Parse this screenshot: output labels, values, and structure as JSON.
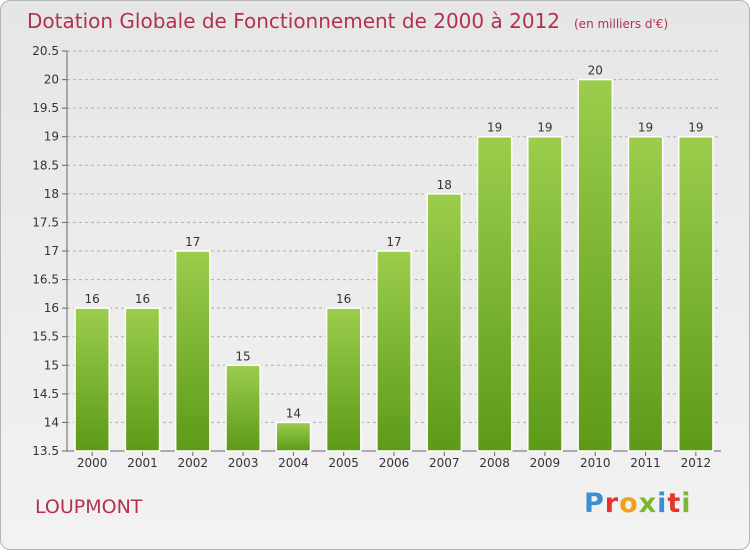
{
  "title": "Dotation Globale de Fonctionnement de 2000 à 2012",
  "unit": "(en milliers d'€)",
  "commune": "LOUPMONT",
  "brand": "Proxiti",
  "colors": {
    "title": "#b2324e",
    "bar_top": "#9ccd4d",
    "bar_bottom": "#5c9a18",
    "grid": "#b0b0b0",
    "logo": [
      "#3b8fd1",
      "#e4352c",
      "#f0a01c",
      "#7fb631",
      "#3b8fd1",
      "#e4352c",
      "#7fb631"
    ]
  },
  "chart_data": {
    "type": "bar",
    "title": "Dotation Globale de Fonctionnement de 2000 à 2012",
    "xlabel": "",
    "ylabel": "",
    "categories": [
      "2000",
      "2001",
      "2002",
      "2003",
      "2004",
      "2005",
      "2006",
      "2007",
      "2008",
      "2009",
      "2010",
      "2011",
      "2012"
    ],
    "values": [
      16,
      16,
      17,
      15,
      14,
      16,
      17,
      18,
      19,
      19,
      20,
      19,
      19
    ],
    "data_labels": [
      "16",
      "16",
      "17",
      "15",
      "14",
      "16",
      "17",
      "18",
      "19",
      "19",
      "20",
      "19",
      "19"
    ],
    "ylim": [
      13.5,
      20.5
    ],
    "yticks": [
      13.5,
      14,
      14.5,
      15,
      15.5,
      16,
      16.5,
      17,
      17.5,
      18,
      18.5,
      19,
      19.5,
      20,
      20.5
    ],
    "ytick_labels": [
      "13.5",
      "14",
      "14.5",
      "15",
      "15.5",
      "16",
      "16.5",
      "17",
      "17.5",
      "18",
      "18.5",
      "19",
      "19.5",
      "20",
      "20.5"
    ],
    "grid": true
  }
}
